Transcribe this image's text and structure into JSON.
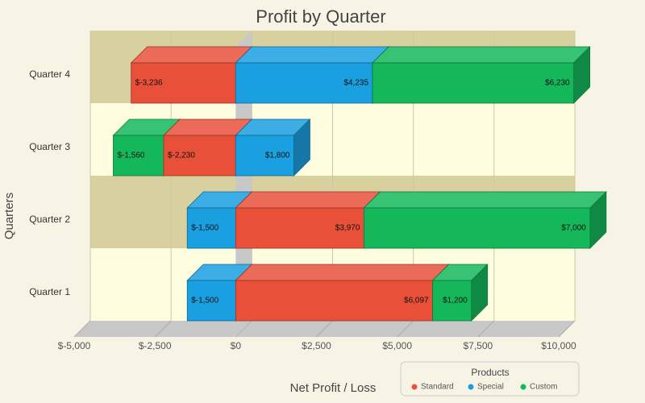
{
  "chart_data": {
    "type": "bar",
    "orientation": "horizontal",
    "stacked": true,
    "three_d": true,
    "title": "Profit by Quarter",
    "x_label": "Net Profit / Loss",
    "y_label": "Quarters",
    "categories": [
      "Quarter 1",
      "Quarter 2",
      "Quarter 3",
      "Quarter 4"
    ],
    "series": [
      {
        "name": "Standard",
        "color": "#e8503a",
        "values": [
          6097,
          3970,
          -2230,
          -3236
        ],
        "value_labels": [
          "$6,097",
          "$3,970",
          "$-2,230",
          "$-3,236"
        ]
      },
      {
        "name": "Special",
        "color": "#1a9fe0",
        "values": [
          -1500,
          -1500,
          1800,
          4235
        ],
        "value_labels": [
          "$-1,500",
          "$-1,500",
          "$1,800",
          "$4,235"
        ]
      },
      {
        "name": "Custom",
        "color": "#14b85a",
        "values": [
          1200,
          7000,
          -1560,
          6230
        ],
        "value_labels": [
          "$1,200",
          "$7,000",
          "$-1,560",
          "$6,230"
        ]
      }
    ],
    "xlim": [
      -5000,
      10000
    ],
    "xticks": [
      {
        "value": -5000,
        "label": "$-5,000"
      },
      {
        "value": -2500,
        "label": "$-2,500"
      },
      {
        "value": 0,
        "label": "$0"
      },
      {
        "value": 2500,
        "label": "$2,500"
      },
      {
        "value": 5000,
        "label": "$5,000"
      },
      {
        "value": 7500,
        "label": "$7,500"
      },
      {
        "value": 10000,
        "label": "$10,000"
      }
    ],
    "legend_title": "Products",
    "legend": "bottom-right",
    "grid": true
  }
}
